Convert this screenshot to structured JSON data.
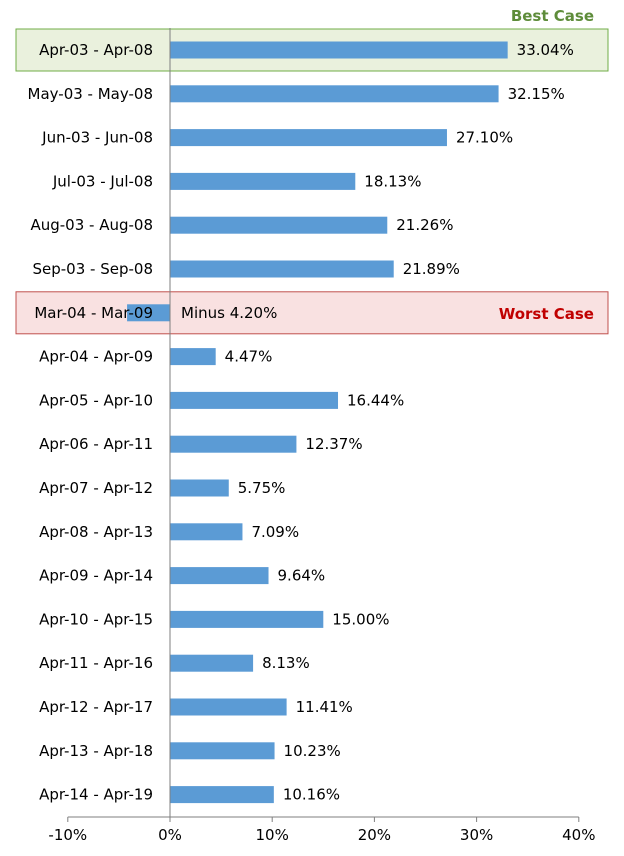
{
  "chart_data": {
    "type": "bar",
    "orientation": "horizontal",
    "categories": [
      "Apr-03 - Apr-08",
      "May-03 - May-08",
      "Jun-03 - Jun-08",
      "Jul-03 - Jul-08",
      "Aug-03 - Aug-08",
      "Sep-03 - Sep-08",
      "Mar-04 - Mar-09",
      "Apr-04 - Apr-09",
      "Apr-05 - Apr-10",
      "Apr-06 - Apr-11",
      "Apr-07 - Apr-12",
      "Apr-08 - Apr-13",
      "Apr-09 - Apr-14",
      "Apr-10 - Apr-15",
      "Apr-11 - Apr-16",
      "Apr-12 - Apr-17",
      "Apr-13 - Apr-18",
      "Apr-14 - Apr-19"
    ],
    "values": [
      33.04,
      32.15,
      27.1,
      18.13,
      21.26,
      21.89,
      -4.2,
      4.47,
      16.44,
      12.37,
      5.75,
      7.09,
      9.64,
      15.0,
      8.13,
      11.41,
      10.23,
      10.16
    ],
    "value_labels": [
      "33.04%",
      "32.15%",
      "27.10%",
      "18.13%",
      "21.26%",
      "21.89%",
      "Minus 4.20%",
      "4.47%",
      "16.44%",
      "12.37%",
      "5.75%",
      "7.09%",
      "9.64%",
      "15.00%",
      "8.13%",
      "11.41%",
      "10.23%",
      "10.16%"
    ],
    "xlim": [
      -10,
      40
    ],
    "xticks": [
      -10,
      0,
      10,
      20,
      30,
      40
    ],
    "xtick_labels": [
      "-10%",
      "0%",
      "10%",
      "20%",
      "30%",
      "40%"
    ],
    "grid": false,
    "bar_color": "#5b9bd5",
    "highlights": [
      {
        "category": "Apr-03 - Apr-08",
        "label": "Best Case",
        "fill": "#eaf1dd",
        "stroke": "#70ad47",
        "text_color": "#5e8c3a"
      },
      {
        "category": "Mar-04 - Mar-09",
        "label": "Worst Case",
        "fill": "#f9e1e1",
        "stroke": "#c0504d",
        "text_color": "#c00000"
      }
    ]
  }
}
